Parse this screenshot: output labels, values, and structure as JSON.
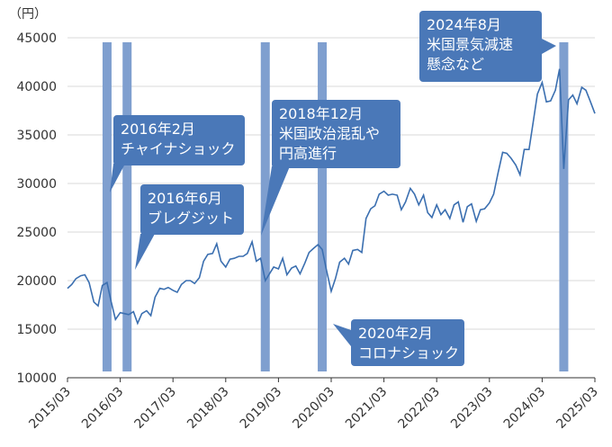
{
  "chart_data": {
    "type": "line",
    "unit_label": "（円）",
    "ylim": [
      10000,
      45000
    ],
    "y_ticks": [
      10000,
      15000,
      20000,
      25000,
      30000,
      35000,
      40000,
      45000
    ],
    "x_ticks": [
      "2015/03",
      "2016/03",
      "2017/03",
      "2018/03",
      "2019/03",
      "2020/03",
      "2021/03",
      "2022/03",
      "2023/03",
      "2024/03",
      "2025/03"
    ],
    "grid": true,
    "colors": {
      "line": "#3b6fb0",
      "band": "#7f9fcf",
      "callout": "#4a78b8",
      "grid": "#d9d9d9",
      "axis": "#333333"
    },
    "series": [
      {
        "values": [
          [
            2015.17,
            19200
          ],
          [
            2015.25,
            19600
          ],
          [
            2015.33,
            20200
          ],
          [
            2015.42,
            20500
          ],
          [
            2015.5,
            20600
          ],
          [
            2015.58,
            19800
          ],
          [
            2015.67,
            17800
          ],
          [
            2015.75,
            17400
          ],
          [
            2015.83,
            19500
          ],
          [
            2015.92,
            19800
          ],
          [
            2016.0,
            17800
          ],
          [
            2016.08,
            16000
          ],
          [
            2016.17,
            16700
          ],
          [
            2016.25,
            16600
          ],
          [
            2016.33,
            16500
          ],
          [
            2016.42,
            16800
          ],
          [
            2016.5,
            15600
          ],
          [
            2016.58,
            16600
          ],
          [
            2016.67,
            16900
          ],
          [
            2016.75,
            16400
          ],
          [
            2016.83,
            18300
          ],
          [
            2016.92,
            19200
          ],
          [
            2017.0,
            19100
          ],
          [
            2017.08,
            19300
          ],
          [
            2017.17,
            19000
          ],
          [
            2017.25,
            18800
          ],
          [
            2017.33,
            19600
          ],
          [
            2017.42,
            20000
          ],
          [
            2017.5,
            20000
          ],
          [
            2017.58,
            19700
          ],
          [
            2017.67,
            20300
          ],
          [
            2017.75,
            22000
          ],
          [
            2017.83,
            22700
          ],
          [
            2017.92,
            22800
          ],
          [
            2018.0,
            23800
          ],
          [
            2018.08,
            22000
          ],
          [
            2018.17,
            21400
          ],
          [
            2018.25,
            22200
          ],
          [
            2018.33,
            22300
          ],
          [
            2018.42,
            22500
          ],
          [
            2018.5,
            22500
          ],
          [
            2018.58,
            22800
          ],
          [
            2018.67,
            24000
          ],
          [
            2018.75,
            22000
          ],
          [
            2018.83,
            22300
          ],
          [
            2018.92,
            20000
          ],
          [
            2019.0,
            20700
          ],
          [
            2019.08,
            21400
          ],
          [
            2019.17,
            21200
          ],
          [
            2019.25,
            22300
          ],
          [
            2019.33,
            20600
          ],
          [
            2019.42,
            21300
          ],
          [
            2019.5,
            21500
          ],
          [
            2019.58,
            20700
          ],
          [
            2019.67,
            21800
          ],
          [
            2019.75,
            22900
          ],
          [
            2019.83,
            23300
          ],
          [
            2019.92,
            23700
          ],
          [
            2020.0,
            23200
          ],
          [
            2020.08,
            21100
          ],
          [
            2020.17,
            18900
          ],
          [
            2020.25,
            20200
          ],
          [
            2020.33,
            21900
          ],
          [
            2020.42,
            22300
          ],
          [
            2020.5,
            21700
          ],
          [
            2020.58,
            23100
          ],
          [
            2020.67,
            23200
          ],
          [
            2020.75,
            22900
          ],
          [
            2020.83,
            26400
          ],
          [
            2020.92,
            27400
          ],
          [
            2021.0,
            27700
          ],
          [
            2021.08,
            28900
          ],
          [
            2021.17,
            29200
          ],
          [
            2021.25,
            28800
          ],
          [
            2021.33,
            28900
          ],
          [
            2021.42,
            28800
          ],
          [
            2021.5,
            27300
          ],
          [
            2021.58,
            28100
          ],
          [
            2021.67,
            29500
          ],
          [
            2021.75,
            28900
          ],
          [
            2021.83,
            27800
          ],
          [
            2021.92,
            28800
          ],
          [
            2022.0,
            27000
          ],
          [
            2022.08,
            26500
          ],
          [
            2022.17,
            27800
          ],
          [
            2022.25,
            26800
          ],
          [
            2022.33,
            27300
          ],
          [
            2022.42,
            26400
          ],
          [
            2022.5,
            27800
          ],
          [
            2022.58,
            28100
          ],
          [
            2022.67,
            26000
          ],
          [
            2022.75,
            27600
          ],
          [
            2022.83,
            27900
          ],
          [
            2022.92,
            26100
          ],
          [
            2023.0,
            27300
          ],
          [
            2023.08,
            27400
          ],
          [
            2023.17,
            28000
          ],
          [
            2023.25,
            28900
          ],
          [
            2023.33,
            31000
          ],
          [
            2023.42,
            33200
          ],
          [
            2023.5,
            33100
          ],
          [
            2023.58,
            32600
          ],
          [
            2023.67,
            31900
          ],
          [
            2023.75,
            30900
          ],
          [
            2023.83,
            33500
          ],
          [
            2023.92,
            33500
          ],
          [
            2024.0,
            36300
          ],
          [
            2024.08,
            39200
          ],
          [
            2024.17,
            40400
          ],
          [
            2024.25,
            38400
          ],
          [
            2024.33,
            38500
          ],
          [
            2024.42,
            39600
          ],
          [
            2024.5,
            41800
          ],
          [
            2024.58,
            31500
          ],
          [
            2024.67,
            38600
          ],
          [
            2024.75,
            39100
          ],
          [
            2024.83,
            38200
          ],
          [
            2024.92,
            39900
          ],
          [
            2025.0,
            39600
          ],
          [
            2025.08,
            38500
          ],
          [
            2025.17,
            37200
          ]
        ]
      }
    ],
    "event_bands": [
      2015.92,
      2016.3,
      2018.92,
      2020.0,
      2024.58
    ],
    "annotations": [
      {
        "lines": [
          "2016年2月",
          "チャイナショック"
        ]
      },
      {
        "lines": [
          "2016年6月",
          "ブレグジット"
        ]
      },
      {
        "lines": [
          "2018年12月",
          "米国政治混乱や",
          "円高進行"
        ]
      },
      {
        "lines": [
          "2020年2月",
          "コロナショック"
        ]
      },
      {
        "lines": [
          "2024年8月",
          "米国景気減速",
          "懸念など"
        ]
      }
    ]
  }
}
